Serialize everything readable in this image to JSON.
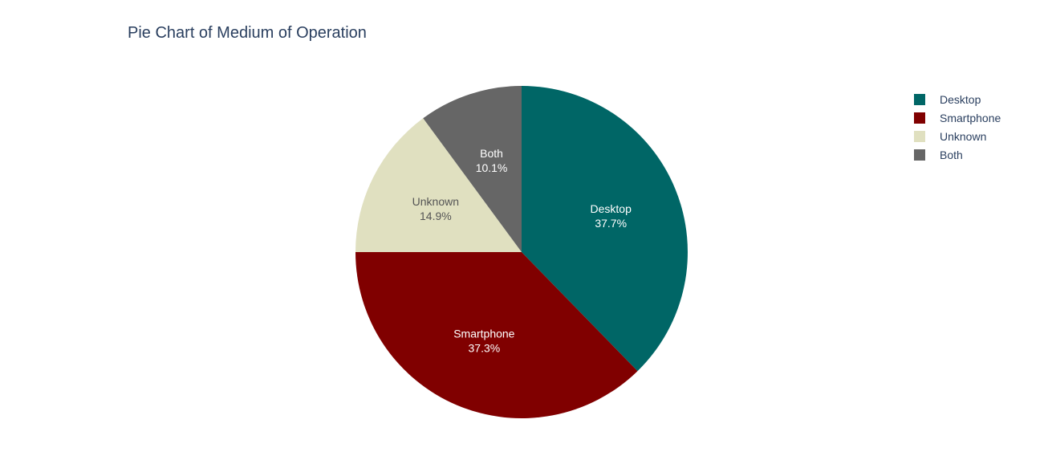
{
  "chart_data": {
    "type": "pie",
    "title": "Pie Chart of Medium of Operation",
    "slices": [
      {
        "label": "Desktop",
        "percent": 37.7,
        "percent_text": "37.7%",
        "color": "#006666",
        "text_color": "#ffffff"
      },
      {
        "label": "Smartphone",
        "percent": 37.3,
        "percent_text": "37.3%",
        "color": "#800000",
        "text_color": "#ffffff"
      },
      {
        "label": "Unknown",
        "percent": 14.9,
        "percent_text": "14.9%",
        "color": "#e0e0c0",
        "text_color": "#555555"
      },
      {
        "label": "Both",
        "percent": 10.1,
        "percent_text": "10.1%",
        "color": "#666666",
        "text_color": "#ffffff"
      }
    ],
    "legend": {
      "position": "top-right",
      "items": [
        "Desktop",
        "Smartphone",
        "Unknown",
        "Both"
      ]
    }
  }
}
